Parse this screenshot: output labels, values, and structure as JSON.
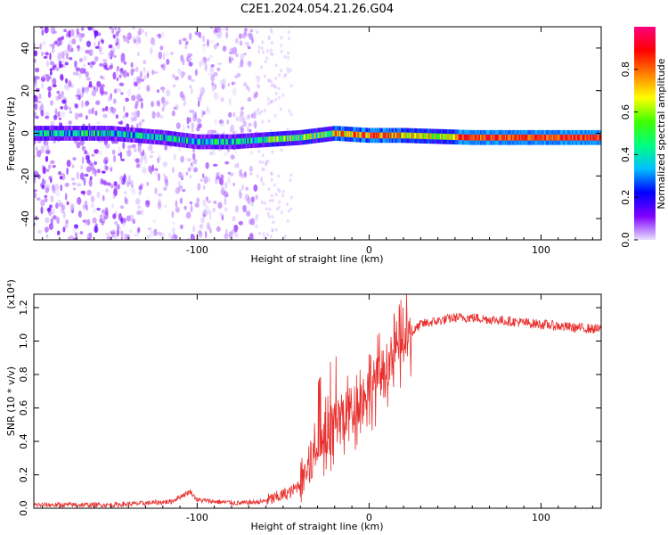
{
  "title": "C2E1.2024.054.21.26.G04",
  "chart_data": [
    {
      "type": "heatmap",
      "description_type": "spectrogram",
      "xlabel": "Height of straight line (km)",
      "ylabel": "Frequency (Hz)",
      "xlim": [
        -195,
        135
      ],
      "ylim": [
        -50,
        50
      ],
      "xticks": [
        -100,
        0,
        100
      ],
      "xtick_labels": [
        "-100",
        "0",
        "100"
      ],
      "yticks": [
        -40,
        -20,
        0,
        20,
        40
      ],
      "ytick_labels": [
        "-40",
        "-20",
        "0",
        "20",
        "40"
      ],
      "colorbar": {
        "label": "Normalized spectral amplitude",
        "range": [
          0,
          1
        ],
        "ticks": [
          0.0,
          0.2,
          0.4,
          0.6,
          0.8
        ],
        "tick_labels": [
          "0.0",
          "0.2",
          "0.4",
          "0.6",
          "0.8"
        ],
        "colormap": [
          "#e8e0ff",
          "#8000ff",
          "#0000ff",
          "#00c0ff",
          "#00ff80",
          "#40ff00",
          "#ffff00",
          "#ff8000",
          "#ff0000",
          "#ff0080"
        ]
      },
      "center_line": {
        "x": [
          -195,
          -150,
          -120,
          -100,
          -80,
          -60,
          -40,
          -20,
          0,
          20,
          60,
          100,
          135
        ],
        "frequency": [
          0,
          0,
          -2,
          -4,
          -4,
          -3,
          -2,
          0,
          -1,
          -1,
          -2,
          -2,
          -2
        ]
      }
    },
    {
      "type": "line",
      "xlabel": "Height of straight line (km)",
      "ylabel": "SNR (10 * v/v)",
      "scale_label": "(x10⁴)",
      "xlim": [
        -195,
        135
      ],
      "ylim": [
        0,
        1.28
      ],
      "xticks": [
        -100,
        0,
        100
      ],
      "xtick_labels": [
        "-100",
        "0",
        "100"
      ],
      "yticks": [
        0.0,
        0.2,
        0.4,
        0.6,
        0.8,
        1.0,
        1.2
      ],
      "ytick_labels": [
        "0.0",
        "0.2",
        "0.4",
        "0.6",
        "0.8",
        "1.0",
        "1.2"
      ],
      "color": "#e8312f",
      "series": [
        {
          "x": [
            -195,
            -170,
            -150,
            -130,
            -115,
            -108,
            -104,
            -100,
            -90,
            -75,
            -62,
            -55,
            -50,
            -45,
            -40,
            -35,
            -30,
            -25,
            -20,
            -15,
            -10,
            -5,
            0,
            5,
            10,
            15,
            20,
            25,
            30,
            40,
            50,
            60,
            70,
            80,
            90,
            100,
            110,
            120,
            135
          ],
          "y": [
            0.02,
            0.02,
            0.02,
            0.03,
            0.04,
            0.08,
            0.1,
            0.05,
            0.04,
            0.03,
            0.04,
            0.06,
            0.08,
            0.1,
            0.15,
            0.25,
            0.35,
            0.45,
            0.5,
            0.55,
            0.6,
            0.65,
            0.72,
            0.78,
            0.85,
            0.92,
            1.0,
            1.05,
            1.1,
            1.12,
            1.14,
            1.14,
            1.13,
            1.12,
            1.11,
            1.1,
            1.09,
            1.08,
            1.07
          ]
        }
      ]
    }
  ]
}
